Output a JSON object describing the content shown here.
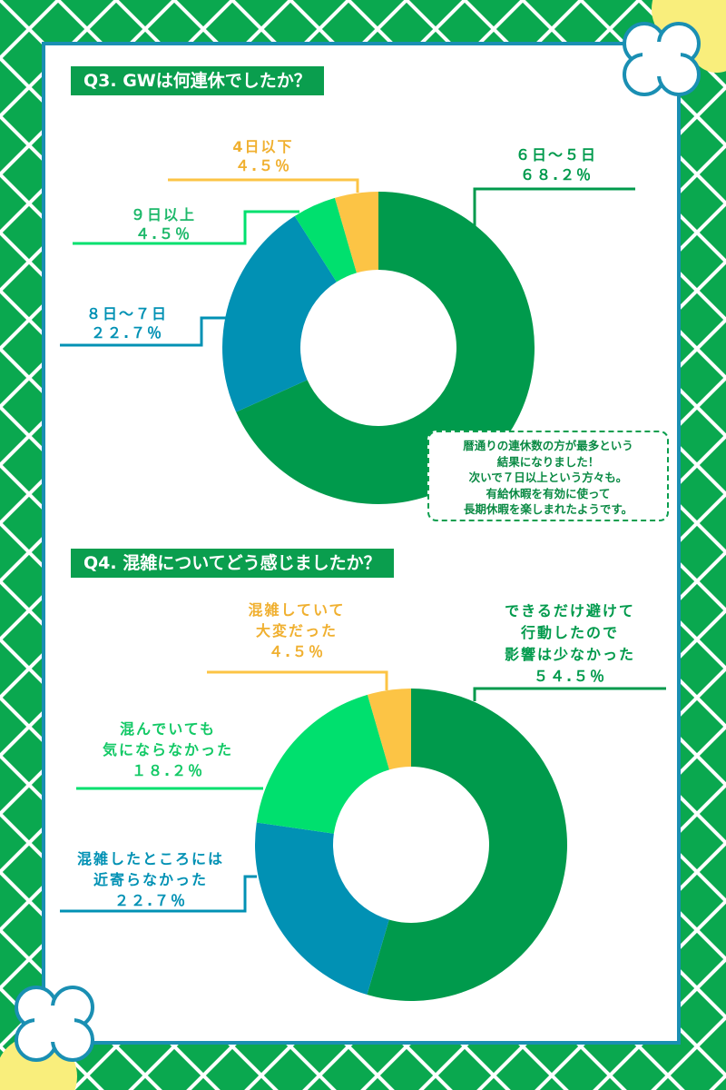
{
  "colors": {
    "dark_green": "#009a4c",
    "teal": "#0191b4",
    "light_green": "#00e06e",
    "yellow": "#fcc445",
    "bg_green": "#0aa84f",
    "border_blue": "#1a8fb3"
  },
  "q3": {
    "title": "Q3. GWは何連休でしたか？",
    "note": [
      "暦通りの連休数の方が最多という",
      "結果になりました！",
      "次いで７日以上という方々も。",
      "有給休暇を有効に使って",
      "長期休暇を楽しまれたようです。"
    ]
  },
  "q4": {
    "title": "Q4. 混雑についてどう感じましたか？"
  },
  "chart_data": [
    {
      "type": "pie",
      "title": "Q3. GWは何連休でしたか？",
      "categories": [
        "６日〜５日",
        "８日〜７日",
        "９日以上",
        "4日以下"
      ],
      "values": [
        68.2,
        22.7,
        4.5,
        4.5
      ],
      "labels": [
        [
          "６日〜５日",
          "６８.２％"
        ],
        [
          "８日〜７日",
          "２２.７％"
        ],
        [
          "９日以上",
          "４.５％"
        ],
        [
          "4日以下",
          "４.５％"
        ]
      ]
    },
    {
      "type": "pie",
      "title": "Q4. 混雑についてどう感じましたか？",
      "categories": [
        "できるだけ避けて行動したので影響は少なかった",
        "混雑したところには近寄らなかった",
        "混んでいても気にならなかった",
        "混雑していて大変だった"
      ],
      "values": [
        54.5,
        22.7,
        18.2,
        4.5
      ],
      "labels": [
        [
          "できるだけ避けて",
          "行動したので",
          "影響は少なかった",
          "５４.５％"
        ],
        [
          "混雑したところには",
          "近寄らなかった",
          "２２.７％"
        ],
        [
          "混んでいても",
          "気にならなかった",
          "１８.２％"
        ],
        [
          "混雑していて",
          "大変だった",
          "４.５％"
        ]
      ]
    }
  ]
}
